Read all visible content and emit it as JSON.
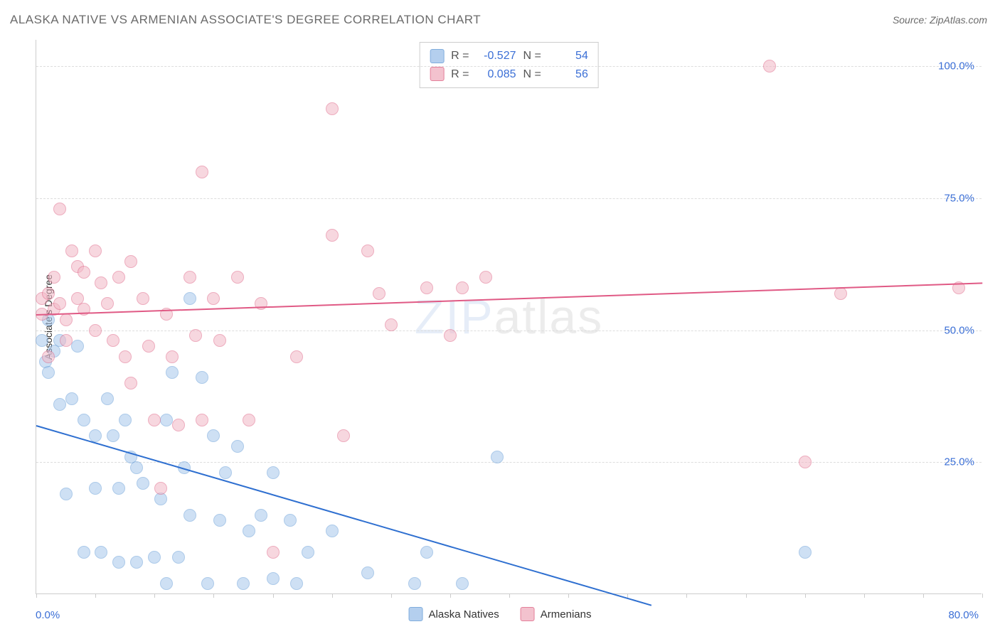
{
  "title": "ALASKA NATIVE VS ARMENIAN ASSOCIATE'S DEGREE CORRELATION CHART",
  "source": "Source: ZipAtlas.com",
  "ylabel": "Associate's Degree",
  "watermark_zip": "ZIP",
  "watermark_atlas": "atlas",
  "chart": {
    "type": "scatter",
    "xlim": [
      0,
      80
    ],
    "ylim": [
      0,
      105
    ],
    "x_axis_min_label": "0.0%",
    "x_axis_max_label": "80.0%",
    "x_tick_step": 5,
    "y_gridlines": [
      25,
      50,
      75,
      100
    ],
    "y_tick_labels": [
      "25.0%",
      "50.0%",
      "75.0%",
      "100.0%"
    ],
    "background_color": "#ffffff",
    "grid_color": "#dddddd",
    "axis_color": "#cccccc",
    "label_color": "#3b6fd6",
    "marker_size": 18,
    "series": [
      {
        "name": "Alaska Natives",
        "fill_color": "#a7c7ec",
        "stroke_color": "#6a9fd8",
        "fill_opacity": 0.55,
        "r": "-0.527",
        "n": "54",
        "trend": {
          "x1": 0,
          "y1": 32,
          "x2": 52,
          "y2": -2,
          "color": "#2e6fd0",
          "width": 2
        },
        "points": [
          [
            0.5,
            48
          ],
          [
            0.8,
            44
          ],
          [
            1,
            42
          ],
          [
            1,
            52
          ],
          [
            1.5,
            46
          ],
          [
            2,
            36
          ],
          [
            2,
            48
          ],
          [
            2.5,
            19
          ],
          [
            3,
            37
          ],
          [
            3.5,
            47
          ],
          [
            4,
            33
          ],
          [
            4,
            8
          ],
          [
            5,
            30
          ],
          [
            5,
            20
          ],
          [
            5.5,
            8
          ],
          [
            6,
            37
          ],
          [
            6.5,
            30
          ],
          [
            7,
            6
          ],
          [
            7,
            20
          ],
          [
            7.5,
            33
          ],
          [
            8,
            26
          ],
          [
            8.5,
            6
          ],
          [
            8.5,
            24
          ],
          [
            9,
            21
          ],
          [
            10,
            7
          ],
          [
            10.5,
            18
          ],
          [
            11,
            2
          ],
          [
            11,
            33
          ],
          [
            11.5,
            42
          ],
          [
            12,
            7
          ],
          [
            12.5,
            24
          ],
          [
            13,
            56
          ],
          [
            13,
            15
          ],
          [
            14,
            41
          ],
          [
            14.5,
            2
          ],
          [
            15,
            30
          ],
          [
            15.5,
            14
          ],
          [
            16,
            23
          ],
          [
            17,
            28
          ],
          [
            17.5,
            2
          ],
          [
            18,
            12
          ],
          [
            19,
            15
          ],
          [
            20,
            3
          ],
          [
            20,
            23
          ],
          [
            21.5,
            14
          ],
          [
            22,
            2
          ],
          [
            23,
            8
          ],
          [
            25,
            12
          ],
          [
            28,
            4
          ],
          [
            32,
            2
          ],
          [
            33,
            8
          ],
          [
            36,
            2
          ],
          [
            39,
            26
          ],
          [
            65,
            8
          ]
        ]
      },
      {
        "name": "Armenians",
        "fill_color": "#f2b8c6",
        "stroke_color": "#e06a8a",
        "fill_opacity": 0.55,
        "r": "0.085",
        "n": "56",
        "trend": {
          "x1": 0,
          "y1": 53,
          "x2": 80,
          "y2": 59,
          "color": "#e05a85",
          "width": 2
        },
        "points": [
          [
            0.5,
            56
          ],
          [
            0.5,
            53
          ],
          [
            1,
            57
          ],
          [
            1,
            45
          ],
          [
            1.5,
            54
          ],
          [
            1.5,
            60
          ],
          [
            2,
            55
          ],
          [
            2,
            73
          ],
          [
            2.5,
            52
          ],
          [
            2.5,
            48
          ],
          [
            3,
            65
          ],
          [
            3.5,
            56
          ],
          [
            3.5,
            62
          ],
          [
            4,
            61
          ],
          [
            4,
            54
          ],
          [
            5,
            65
          ],
          [
            5,
            50
          ],
          [
            5.5,
            59
          ],
          [
            6,
            55
          ],
          [
            6.5,
            48
          ],
          [
            7,
            60
          ],
          [
            7.5,
            45
          ],
          [
            8,
            40
          ],
          [
            8,
            63
          ],
          [
            9,
            56
          ],
          [
            9.5,
            47
          ],
          [
            10,
            33
          ],
          [
            10.5,
            20
          ],
          [
            11,
            53
          ],
          [
            11.5,
            45
          ],
          [
            12,
            32
          ],
          [
            13,
            60
          ],
          [
            13.5,
            49
          ],
          [
            14,
            33
          ],
          [
            14,
            80
          ],
          [
            15,
            56
          ],
          [
            15.5,
            48
          ],
          [
            17,
            60
          ],
          [
            18,
            33
          ],
          [
            19,
            55
          ],
          [
            20,
            8
          ],
          [
            22,
            45
          ],
          [
            25,
            92
          ],
          [
            25,
            68
          ],
          [
            26,
            30
          ],
          [
            28,
            65
          ],
          [
            29,
            57
          ],
          [
            30,
            51
          ],
          [
            33,
            58
          ],
          [
            35,
            49
          ],
          [
            36,
            58
          ],
          [
            38,
            60
          ],
          [
            62,
            100
          ],
          [
            65,
            25
          ],
          [
            68,
            57
          ],
          [
            78,
            58
          ]
        ]
      }
    ]
  },
  "stats_box": {
    "r_label": "R =",
    "n_label": "N ="
  },
  "legend": {
    "items": [
      "Alaska Natives",
      "Armenians"
    ]
  }
}
